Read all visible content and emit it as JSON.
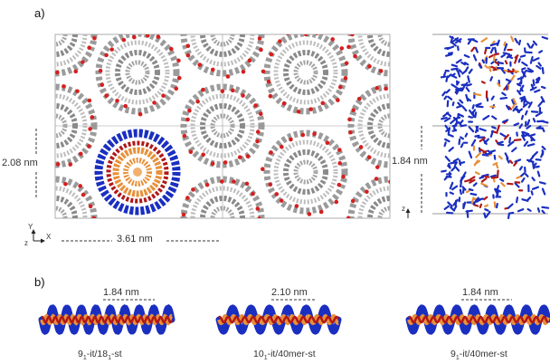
{
  "figure": {
    "panel_a_label": "a)",
    "panel_b_label": "b)",
    "dimensions": {
      "height_top_view": "2.08 nm",
      "width_top_view": "3.61 nm",
      "height_side_view": "1.84 nm"
    },
    "axes": {
      "y": "Y",
      "z": "z",
      "x": "X",
      "z_side": "z"
    },
    "helices": [
      {
        "pitch": "1.84 nm",
        "caption_main": "9",
        "caption_sub1": "1",
        "caption_mid": "-it/18",
        "caption_sub2": "1",
        "caption_end": "-st"
      },
      {
        "pitch": "2.10 nm",
        "caption_main": "10",
        "caption_sub1": "1",
        "caption_mid": "-it/40mer-st",
        "caption_sub2": "",
        "caption_end": ""
      },
      {
        "pitch": "1.84 nm",
        "caption_main": "9",
        "caption_sub1": "1",
        "caption_mid": "-it/40mer-st",
        "caption_sub2": "",
        "caption_end": ""
      }
    ],
    "colors": {
      "carbon_gray": "#8a8a8a",
      "oxygen_red": "#d42020",
      "chain_blue": "#1a2fc0",
      "chain_orange": "#e8903a",
      "chain_darkred": "#b01818"
    }
  }
}
